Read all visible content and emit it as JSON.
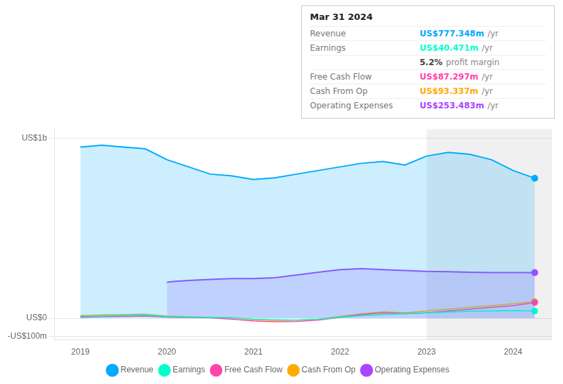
{
  "chart_data": {
    "type": "line",
    "title": "Mar 31 2024",
    "annotations": [
      {
        "label": "Revenue",
        "text": "US$777.348m",
        "suffix": "/yr",
        "color": "#00aaff"
      },
      {
        "label": "Earnings",
        "text": "US$40.471m",
        "suffix": "/yr",
        "color": "#00ffcc"
      },
      {
        "text": "5.2%",
        "suffix": "profit margin"
      },
      {
        "label": "Free Cash Flow",
        "text": "US$87.297m",
        "suffix": "/yr",
        "color": "#ff44aa"
      },
      {
        "label": "Cash From Op",
        "text": "US$93.337m",
        "suffix": "/yr",
        "color": "#ffaa00"
      },
      {
        "label": "Operating Expenses",
        "text": "US$253.483m",
        "suffix": "/yr",
        "color": "#aa44ff"
      }
    ],
    "x": [
      2019.0,
      2019.25,
      2019.5,
      2019.75,
      2020.0,
      2020.25,
      2020.5,
      2020.75,
      2021.0,
      2021.25,
      2021.5,
      2021.75,
      2022.0,
      2022.25,
      2022.5,
      2022.75,
      2023.0,
      2023.25,
      2023.5,
      2023.75,
      2024.0,
      2024.25
    ],
    "series": [
      {
        "name": "Revenue",
        "color": "#00aaff",
        "type": "area",
        "values": [
          950,
          960,
          950,
          940,
          880,
          840,
          800,
          790,
          770,
          780,
          800,
          820,
          840,
          860,
          870,
          850,
          900,
          920,
          910,
          880,
          820,
          777
        ]
      },
      {
        "name": "Earnings",
        "color": "#00ffcc",
        "values": [
          10,
          12,
          15,
          18,
          8,
          5,
          3,
          2,
          -5,
          -8,
          -10,
          -5,
          5,
          15,
          20,
          25,
          30,
          35,
          38,
          40,
          42,
          40
        ]
      },
      {
        "name": "Free Cash Flow",
        "color": "#ff44aa",
        "values": [
          5,
          8,
          10,
          12,
          6,
          4,
          2,
          -5,
          -15,
          -20,
          -18,
          -10,
          5,
          20,
          30,
          25,
          30,
          40,
          50,
          60,
          70,
          87
        ]
      },
      {
        "name": "Cash From Op",
        "color": "#ffaa00",
        "values": [
          15,
          18,
          20,
          22,
          12,
          8,
          5,
          2,
          -8,
          -12,
          -10,
          -5,
          10,
          25,
          35,
          30,
          40,
          50,
          60,
          70,
          80,
          93
        ]
      },
      {
        "name": "Operating Expenses",
        "color": "#aa44ff",
        "type": "area",
        "x": [
          2020.0,
          2020.1,
          2020.25,
          2020.5,
          2020.75,
          2021.0,
          2021.25,
          2021.5,
          2021.75,
          2022.0,
          2022.25,
          2022.5,
          2022.75,
          2023.0,
          2023.25,
          2023.5,
          2023.75,
          2024.0,
          2024.25
        ],
        "values": [
          200,
          205,
          210,
          215,
          220,
          220,
          225,
          240,
          255,
          270,
          275,
          270,
          265,
          260,
          258,
          255,
          253,
          253,
          253
        ]
      }
    ],
    "highlight_x": [
      2023.0,
      2024.45
    ],
    "xlim": [
      2018.7,
      2024.45
    ],
    "xticks": [
      2019,
      2020,
      2021,
      2022,
      2023,
      2024
    ],
    "ylim": [
      -120,
      1050
    ],
    "yticks": [
      {
        "value": -100,
        "label": "-US$100m"
      },
      {
        "value": 0,
        "label": "US$0"
      },
      {
        "value": 1000,
        "label": "US$1b"
      }
    ],
    "grid": true,
    "legend": "bottom"
  }
}
